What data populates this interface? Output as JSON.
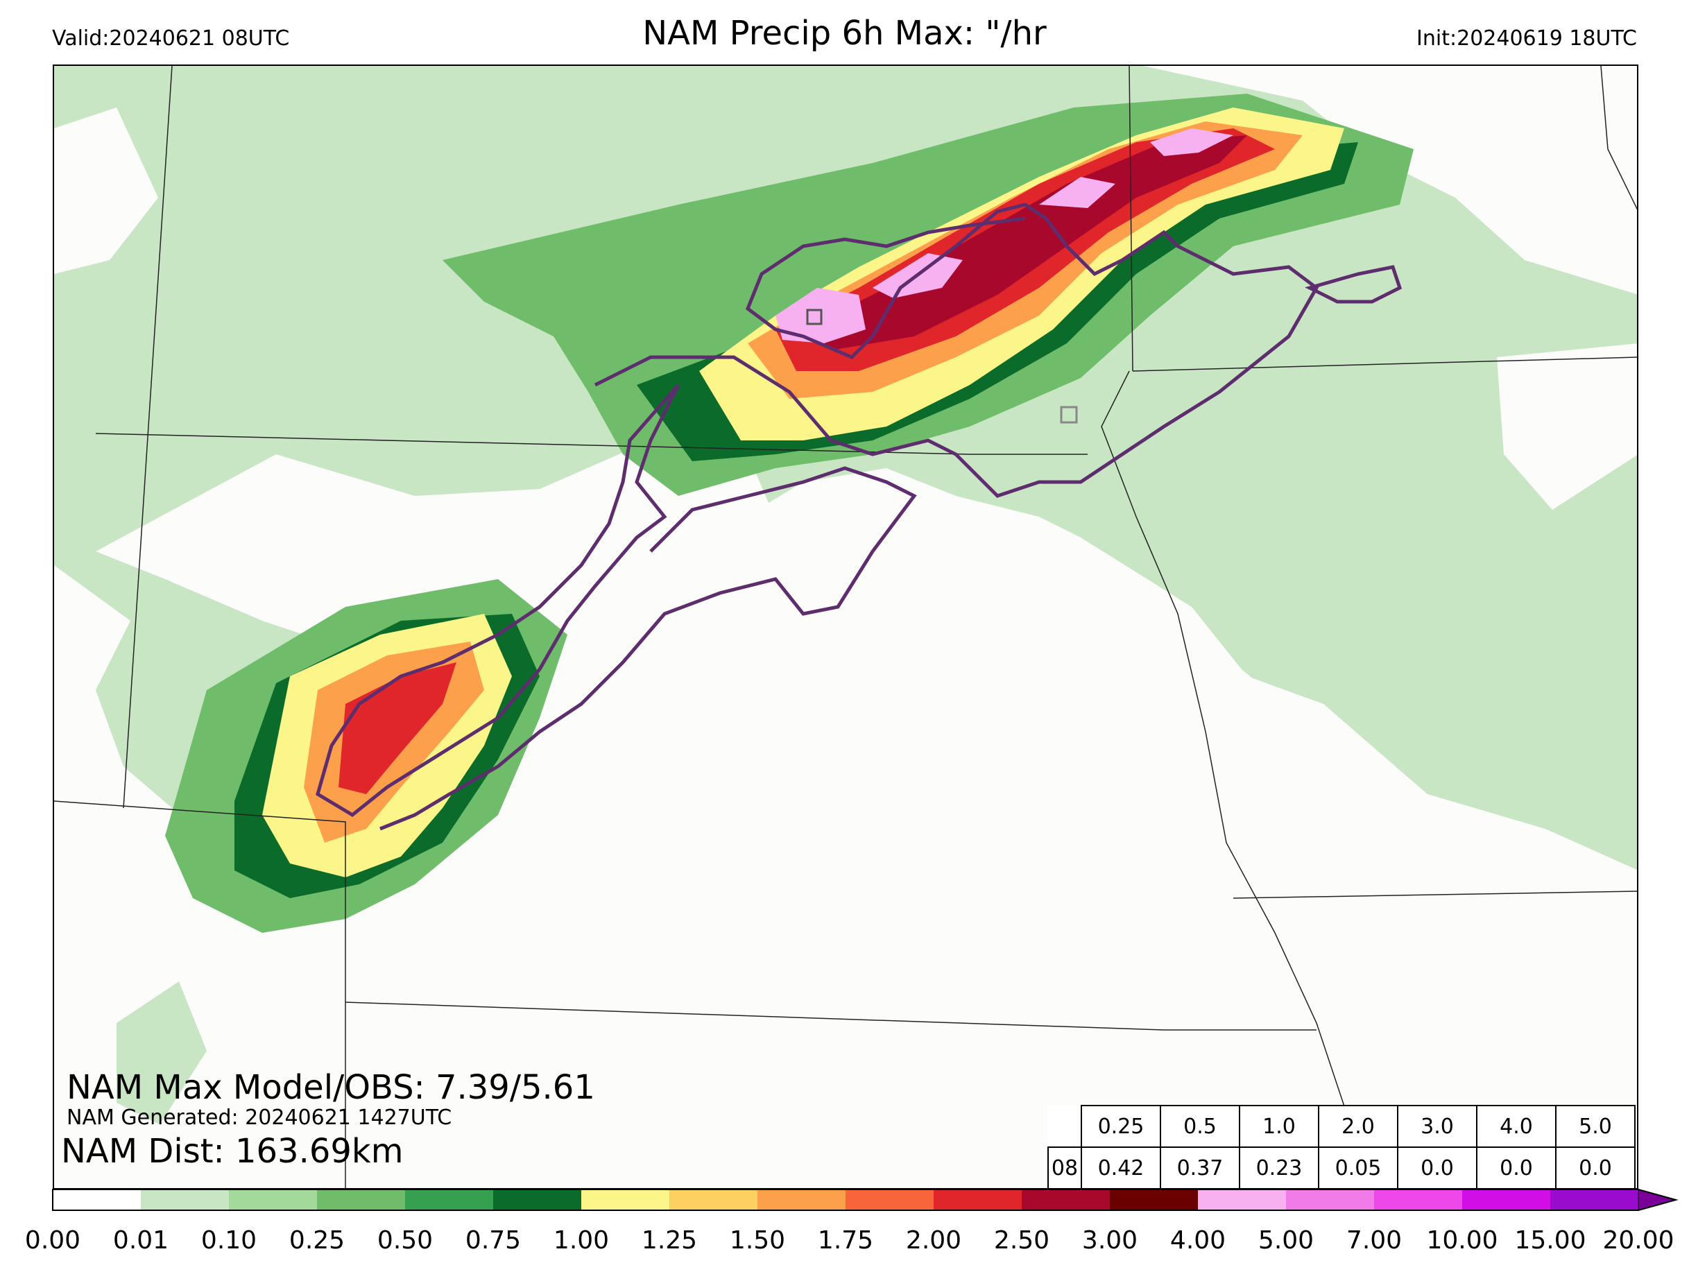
{
  "header": {
    "valid": "Valid:20240621 08UTC",
    "title": "NAM Precip 6h Max: \"/hr",
    "init": "Init:20240619 18UTC"
  },
  "stats": {
    "max_model_obs": "NAM Max Model/OBS: 7.39/5.61",
    "generated": "NAM Generated: 20240621 1427UTC",
    "dist": "NAM Dist: 163.69km"
  },
  "threshold_table": {
    "thresholds": [
      "0.25",
      "0.5",
      "1.0",
      "2.0",
      "3.0",
      "4.0",
      "5.0"
    ],
    "hour": "08",
    "values": [
      "0.42",
      "0.37",
      "0.23",
      "0.05",
      "0.0",
      "0.0",
      "0.0"
    ]
  },
  "colorbar": {
    "ticks": [
      "0.00",
      "0.01",
      "0.10",
      "0.25",
      "0.50",
      "0.75",
      "1.00",
      "1.25",
      "1.50",
      "1.75",
      "2.00",
      "2.50",
      "3.00",
      "4.00",
      "5.00",
      "7.00",
      "10.00",
      "15.00",
      "20.00"
    ],
    "colors": [
      "#ffffff",
      "#c9e6c4",
      "#a3d99a",
      "#6fbd6b",
      "#35a04f",
      "#0a6b2a",
      "#fbf58a",
      "#fdd062",
      "#fca04c",
      "#f9653a",
      "#e0262a",
      "#a8082c",
      "#6b0000",
      "#f7b0f0",
      "#f27bea",
      "#ef48ea",
      "#d10ee6",
      "#9a0ccd"
    ],
    "extend_color": "#7a0099"
  },
  "map_colors": {
    "background": "#fcfcfa",
    "borders": "#222222",
    "contour": "#5e2d6e",
    "obs_marker": "#555555"
  }
}
